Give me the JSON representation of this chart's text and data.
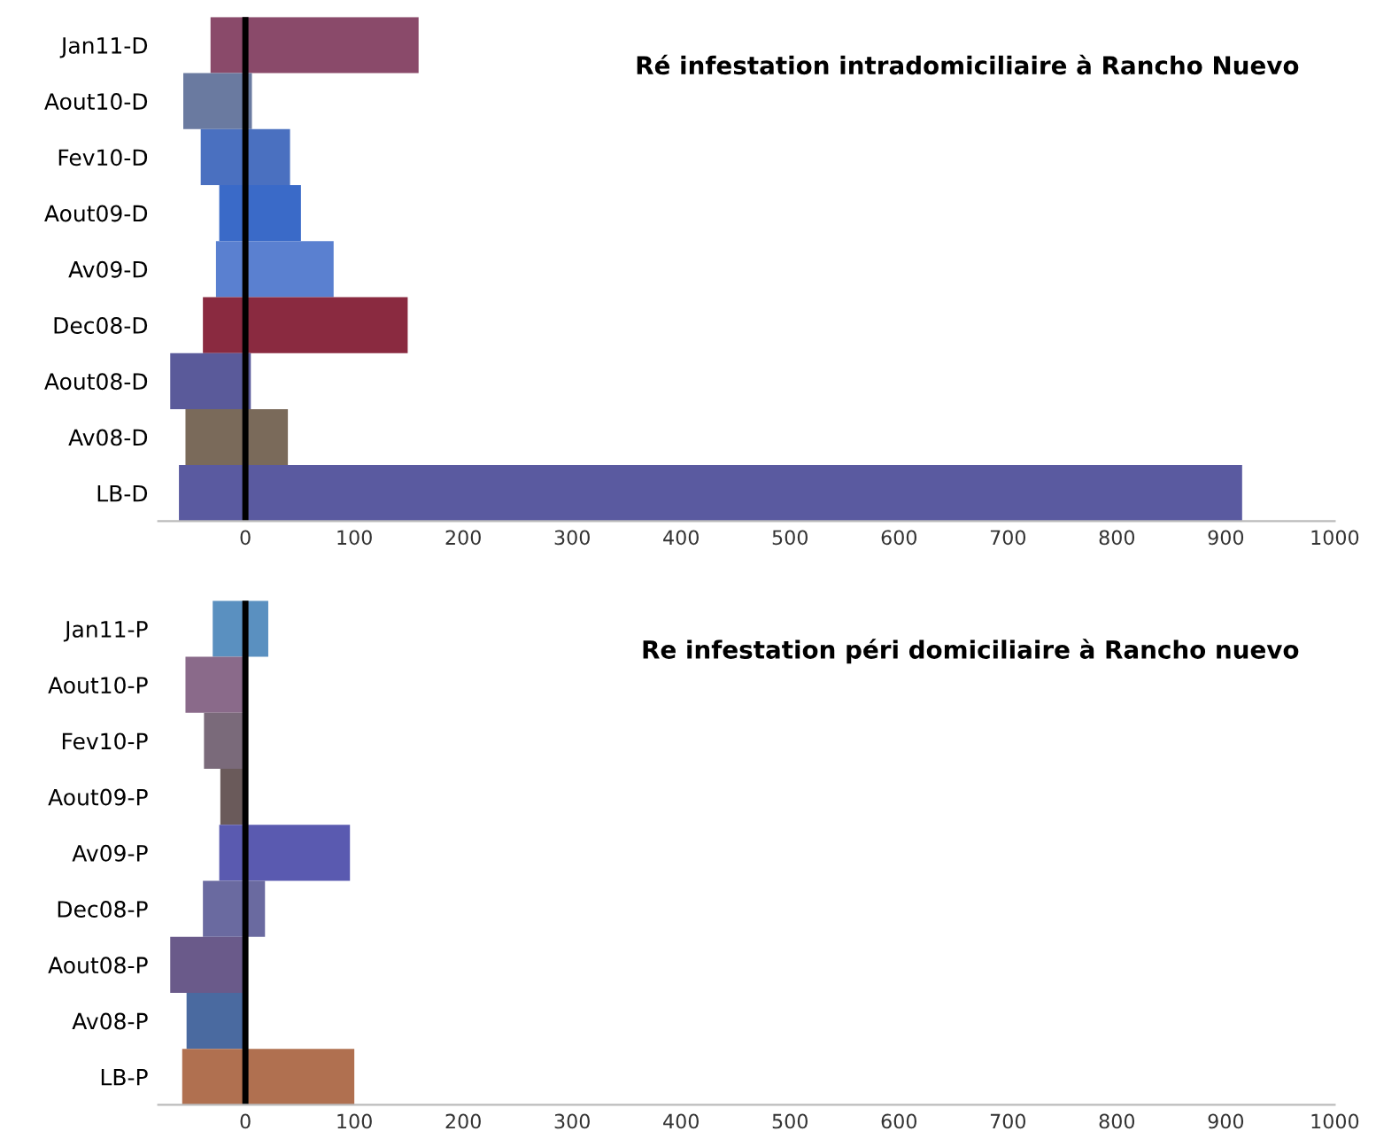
{
  "chart_data": [
    {
      "type": "bar",
      "orientation": "horizontal",
      "title": "Ré infestation intradomiciliaire à Rancho Nuevo",
      "categories": [
        "Jan11-D",
        "Aout10-D",
        "Fev10-D",
        "Aout09-D",
        "Av09-D",
        "Dec08-D",
        "Aout08-D",
        "Av08-D",
        "LB-D"
      ],
      "base": [
        -32,
        -57,
        -41,
        -24,
        -27,
        -39,
        -69,
        -55,
        -61
      ],
      "values": [
        191,
        63,
        82,
        75,
        108,
        188,
        74,
        94,
        976
      ],
      "colors": [
        "#8a4a6a",
        "#6a7aa0",
        "#4a70c0",
        "#3a6ac8",
        "#5a80d0",
        "#8a2a40",
        "#5a5a9a",
        "#7a6a5a",
        "#5a5aa0"
      ],
      "ref_lines": [
        {
          "axis": "x",
          "value": 0,
          "color": "#000000"
        }
      ],
      "xlim": [
        -80,
        1000
      ],
      "xticks": [
        0,
        100,
        200,
        300,
        400,
        500,
        600,
        700,
        800,
        900,
        1000
      ],
      "grid": false
    },
    {
      "type": "bar",
      "orientation": "horizontal",
      "title": "Re infestation péri domiciliaire à Rancho nuevo",
      "categories": [
        "Jan11-P",
        "Aout10-P",
        "Fev10-P",
        "Aout09-P",
        "Av09-P",
        "Dec08-P",
        "Aout08-P",
        "Av08-P",
        "LB-P"
      ],
      "base": [
        -30,
        -55,
        -38,
        -23,
        -24,
        -39,
        -69,
        -54,
        -58
      ],
      "values": [
        51,
        55,
        38,
        23,
        120,
        57,
        69,
        54,
        158
      ],
      "colors": [
        "#5a90c0",
        "#8a6a8a",
        "#7a6a7a",
        "#6a5a5a",
        "#5a5ab0",
        "#6a6aa0",
        "#6a5a8a",
        "#4a6aa0",
        "#b07050"
      ],
      "ref_lines": [
        {
          "axis": "x",
          "value": 0,
          "color": "#000000"
        }
      ],
      "xlim": [
        -80,
        1000
      ],
      "xticks": [
        0,
        100,
        200,
        300,
        400,
        500,
        600,
        700,
        800,
        900,
        1000
      ],
      "grid": false
    }
  ]
}
